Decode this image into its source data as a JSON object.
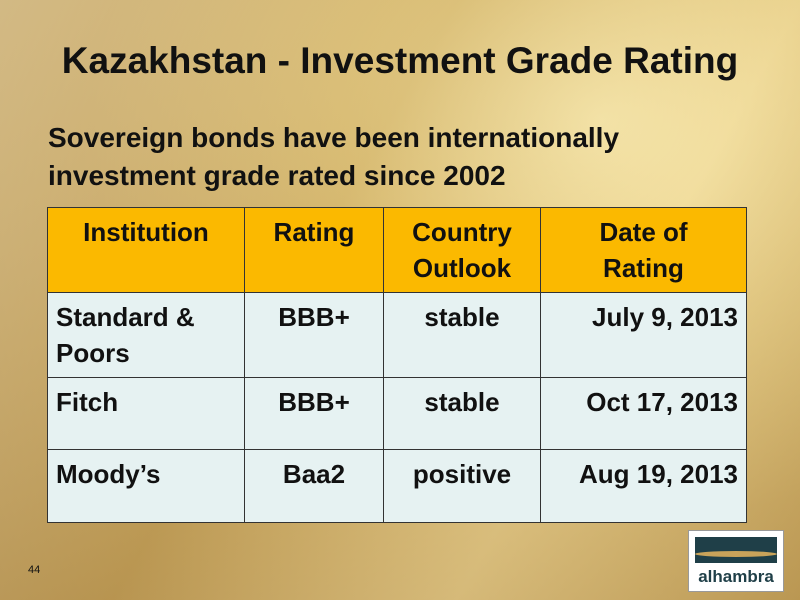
{
  "header": {
    "title": "Kazakhstan - Investment Grade Rating",
    "subtitle_lines": [
      "Sovereign bonds have been internationally",
      "investment grade rated since 2002"
    ]
  },
  "table": {
    "columns": [
      "Institution",
      "Rating",
      "Country Outlook",
      "Date of Rating"
    ],
    "rows": [
      [
        "Standard & Poors",
        "BBB+",
        "stable",
        "July 9, 2013"
      ],
      [
        "Fitch",
        "BBB+",
        "stable",
        "Oct 17, 2013"
      ],
      [
        "Moody’s",
        "Baa2",
        "positive",
        "Aug 19, 2013"
      ]
    ]
  },
  "footer": {
    "page_number": "44",
    "logo": "alhambra"
  }
}
